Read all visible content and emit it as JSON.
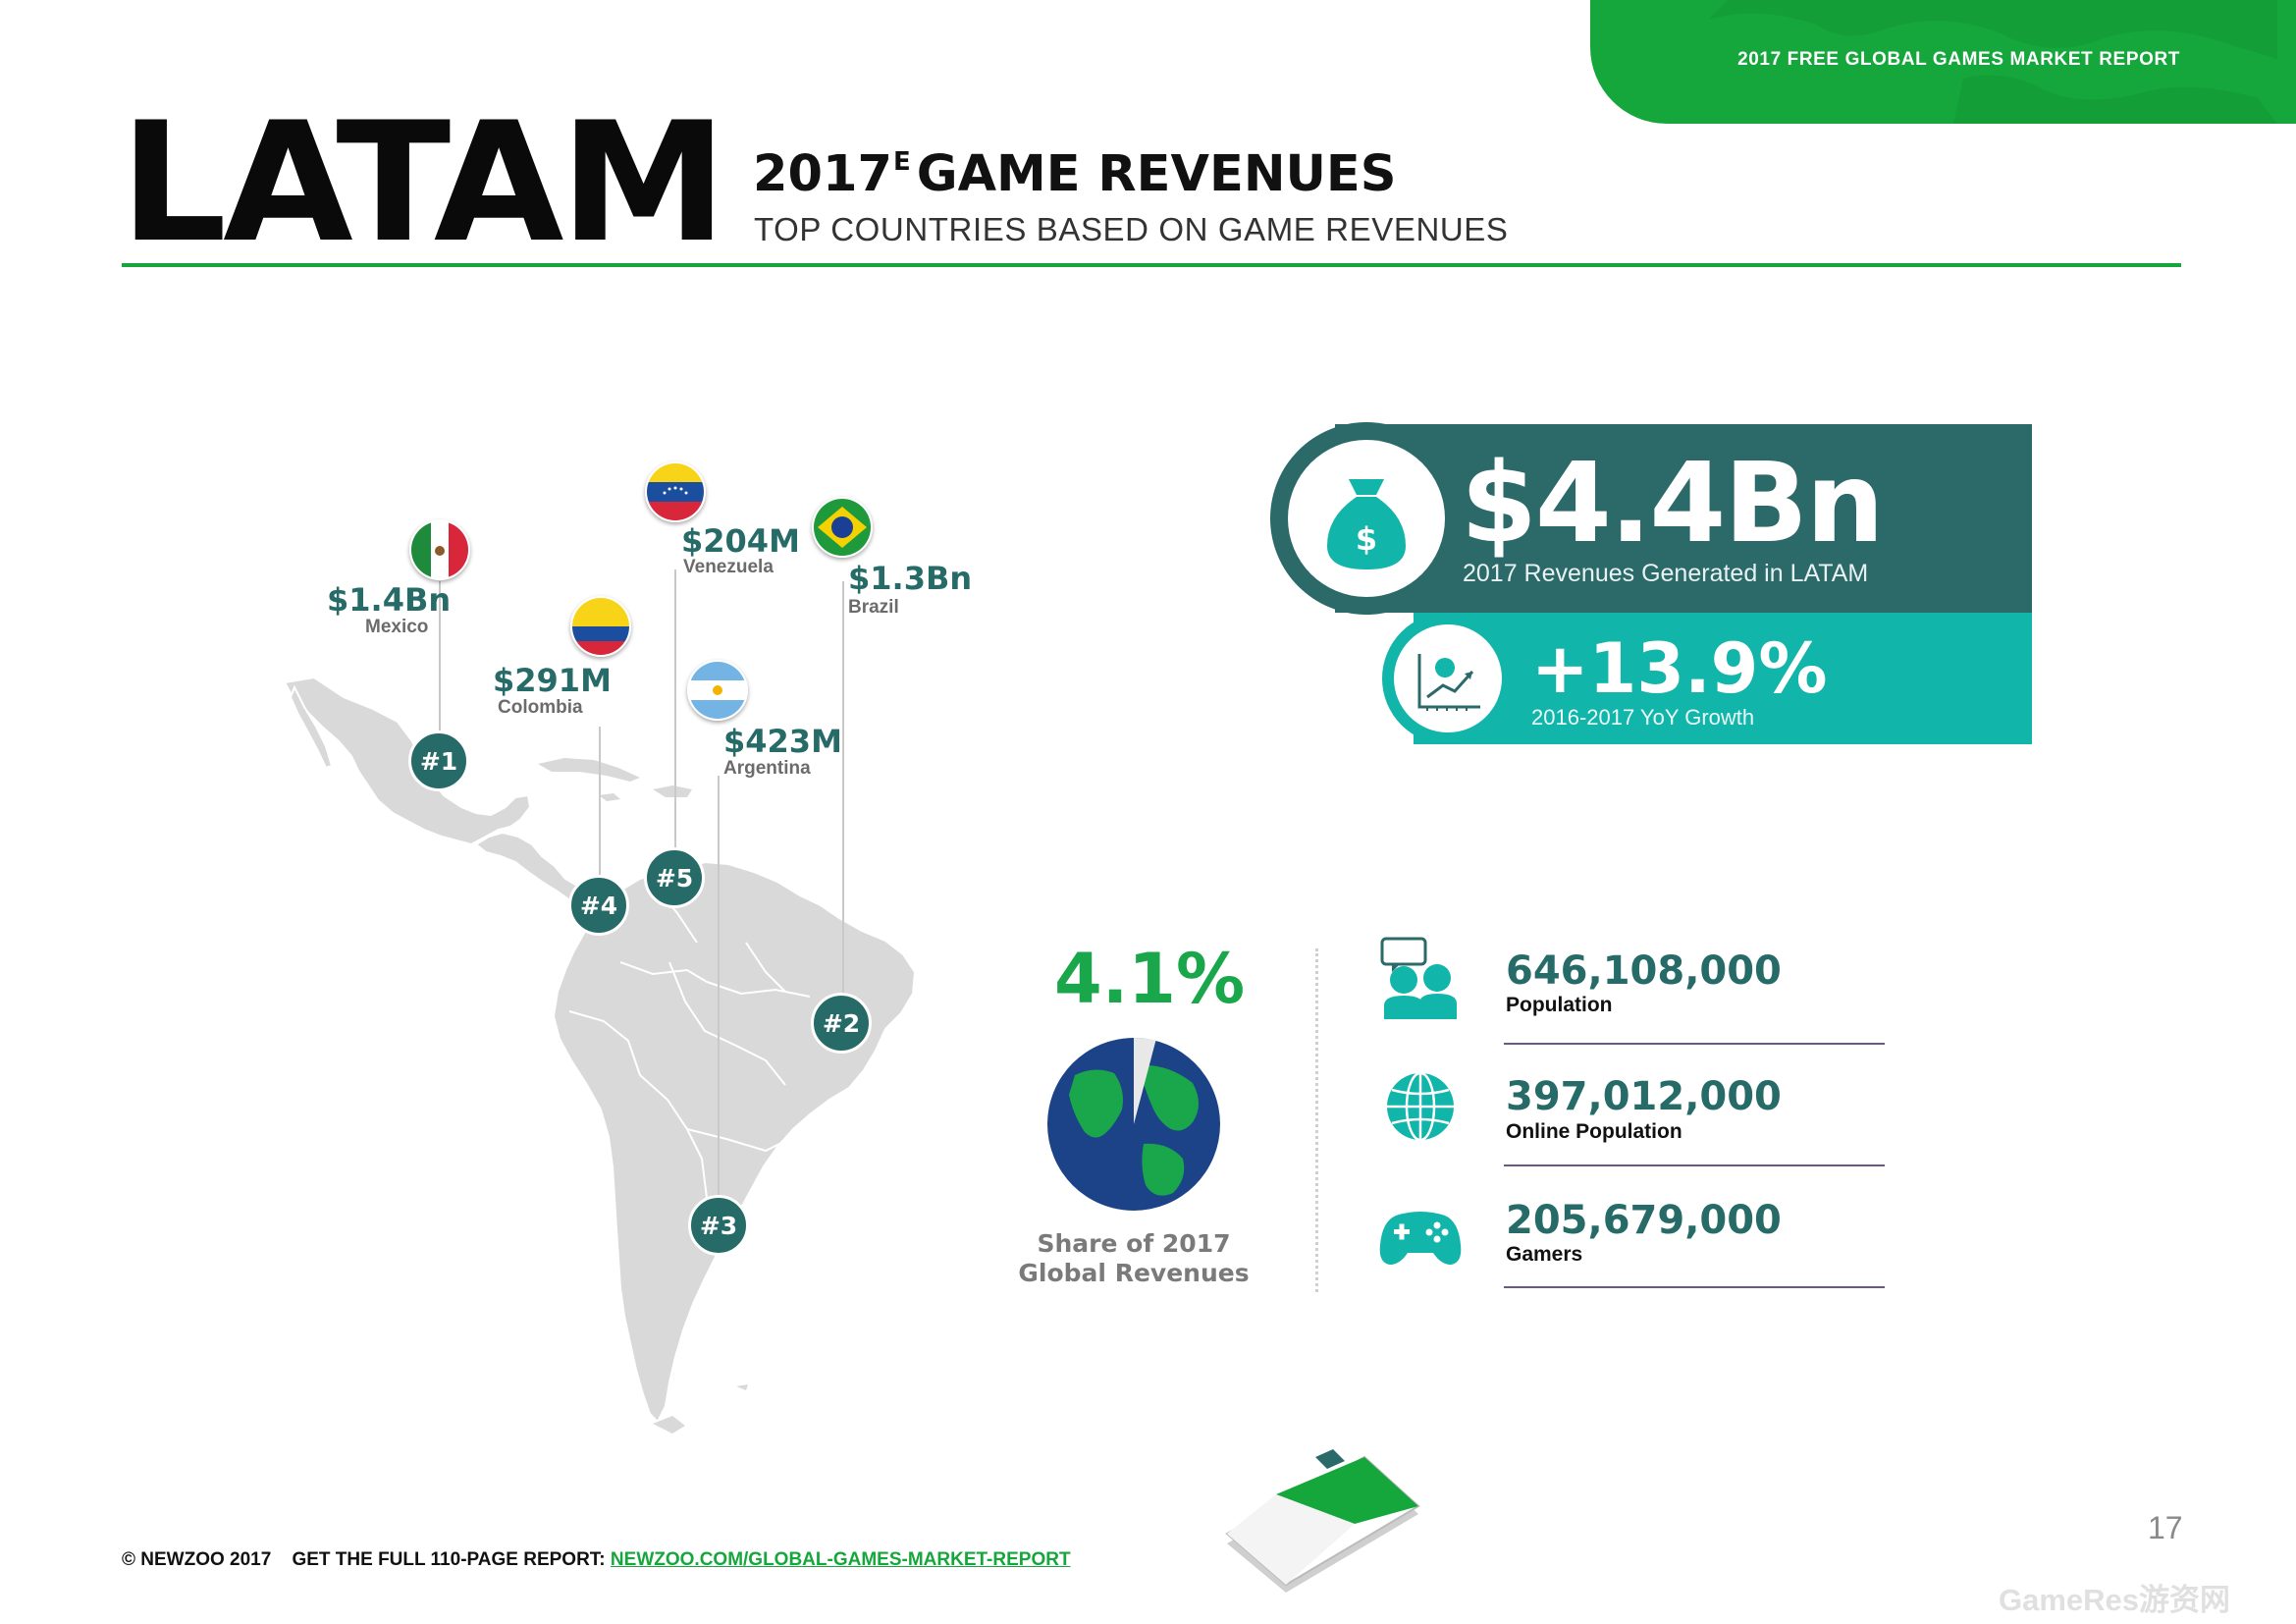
{
  "header": {
    "tab_text": "2017 FREE GLOBAL GAMES MARKET REPORT",
    "title": "LATAM",
    "heading_year": "2017",
    "heading_sup": "E",
    "heading_rest": "GAME REVENUES",
    "subheading": "TOP COUNTRIES BASED ON GAME REVENUES"
  },
  "countries": [
    {
      "rank": "#1",
      "value": "$1.4Bn",
      "name": "Mexico",
      "flag": "mexico-flag"
    },
    {
      "rank": "#2",
      "value": "$1.3Bn",
      "name": "Brazil",
      "flag": "brazil-flag"
    },
    {
      "rank": "#3",
      "value": "$423M",
      "name": "Argentina",
      "flag": "argentina-flag"
    },
    {
      "rank": "#4",
      "value": "$291M",
      "name": "Colombia",
      "flag": "colombia-flag"
    },
    {
      "rank": "#5",
      "value": "$204M",
      "name": "Venezuela",
      "flag": "venezuela-flag"
    }
  ],
  "revenue": {
    "value": "$4.4Bn",
    "caption": "2017 Revenues Generated in LATAM",
    "icon": "money-bag-icon"
  },
  "growth": {
    "value": "+13.9%",
    "caption": "2016-2017 YoY Growth",
    "icon": "growth-chart-icon"
  },
  "share": {
    "value": "4.1%",
    "percent": 4.1,
    "caption_line1": "Share of 2017",
    "caption_line2": "Global Revenues"
  },
  "stats": [
    {
      "value": "646,108,000",
      "label": "Population",
      "icon": "people-icon"
    },
    {
      "value": "397,012,000",
      "label": "Online Population",
      "icon": "globe-icon"
    },
    {
      "value": "205,679,000",
      "label": "Gamers",
      "icon": "gamepad-icon"
    }
  ],
  "footer": {
    "copyright": "© NEWZOO 2017",
    "cta": "GET THE FULL 110-PAGE REPORT:",
    "link": "NEWZOO.COM/GLOBAL-GAMES-MARKET-REPORT",
    "page_number": "17",
    "watermark": "GameRes游资网"
  },
  "colors": {
    "brand_green": "#15a63c",
    "dark_teal": "#2b6a69",
    "teal": "#11b5a9",
    "map_grey": "#d9d9d9"
  }
}
